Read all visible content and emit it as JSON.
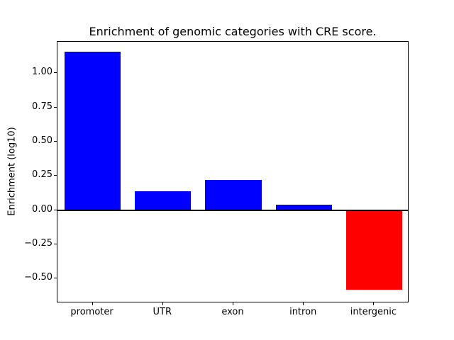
{
  "chart_data": {
    "type": "bar",
    "title": "Enrichment of genomic categories with CRE score.",
    "xlabel": "",
    "ylabel": "Enrichment (log10)",
    "categories": [
      "promoter",
      "UTR",
      "exon",
      "intron",
      "intergenic"
    ],
    "values": [
      1.16,
      0.14,
      0.22,
      0.04,
      -0.58
    ],
    "bar_colors": [
      "#0000ff",
      "#0000ff",
      "#0000ff",
      "#0000ff",
      "#ff0000"
    ],
    "ylim": [
      -0.68,
      1.23
    ],
    "yticks": [
      {
        "value": 1.0,
        "label": "1.00"
      },
      {
        "value": 0.75,
        "label": "0.75"
      },
      {
        "value": 0.5,
        "label": "0.50"
      },
      {
        "value": 0.25,
        "label": "0.25"
      },
      {
        "value": 0.0,
        "label": "0.00"
      },
      {
        "value": -0.25,
        "label": "−0.25"
      },
      {
        "value": -0.5,
        "label": "−0.50"
      }
    ],
    "zero_line": true,
    "grid": false,
    "legend": null,
    "bar_width_fraction": 0.8,
    "colors": {
      "positive_bar": "#0000ff",
      "negative_bar": "#ff0000",
      "axis": "#000000",
      "background": "#ffffff"
    }
  }
}
